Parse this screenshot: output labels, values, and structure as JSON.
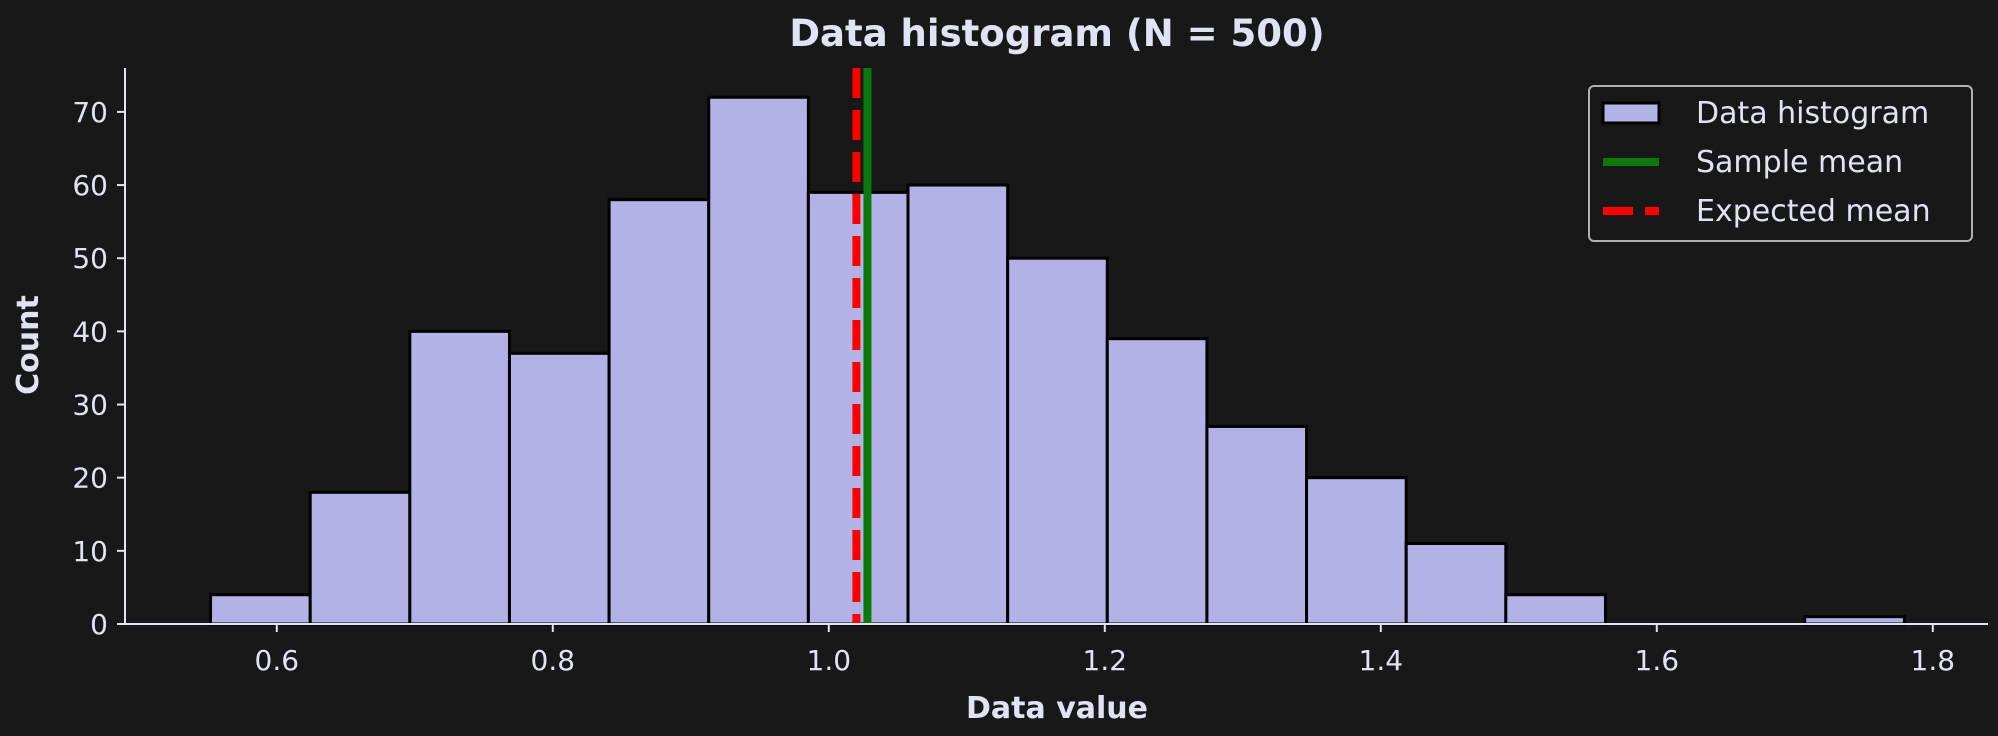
{
  "chart_data": {
    "type": "bar",
    "title": "Data histogram (N = 500)",
    "xlabel": "Data value",
    "ylabel": "Count",
    "xlim": [
      0.49,
      1.84
    ],
    "ylim": [
      0,
      76
    ],
    "xticks": [
      0.6,
      0.8,
      1.0,
      1.2,
      1.4,
      1.6,
      1.8
    ],
    "xtick_labels": [
      "0.6",
      "0.8",
      "1.0",
      "1.2",
      "1.4",
      "1.6",
      "1.8"
    ],
    "yticks": [
      0,
      10,
      20,
      30,
      40,
      50,
      60,
      70
    ],
    "ytick_labels": [
      "0",
      "10",
      "20",
      "30",
      "40",
      "50",
      "60",
      "70"
    ],
    "bin_start": 0.552,
    "bin_width": 0.0722,
    "counts": [
      4,
      18,
      40,
      37,
      58,
      72,
      59,
      60,
      50,
      39,
      27,
      20,
      11,
      4,
      0,
      0,
      1
    ],
    "series_name": "Data histogram",
    "sample_mean": 1.028,
    "expected_mean": 1.02,
    "legend": {
      "position": "upper right",
      "entries": [
        {
          "label": "Data histogram",
          "kind": "patch",
          "color": "#b3b2e6"
        },
        {
          "label": "Sample mean",
          "kind": "line",
          "color": "#0b7a0b"
        },
        {
          "label": "Expected mean",
          "kind": "dashed-line",
          "color": "#ff0000"
        }
      ]
    },
    "grid": false,
    "colors": {
      "background": "#181818",
      "bar_fill": "#b3b2e6",
      "bar_edge": "#000000",
      "axis": "#dfe3f3",
      "text": "#dfe3f3",
      "sample_mean_line": "#0b7a0b",
      "expected_mean_line": "#ff0000",
      "legend_border": "#b0b0b0"
    }
  }
}
